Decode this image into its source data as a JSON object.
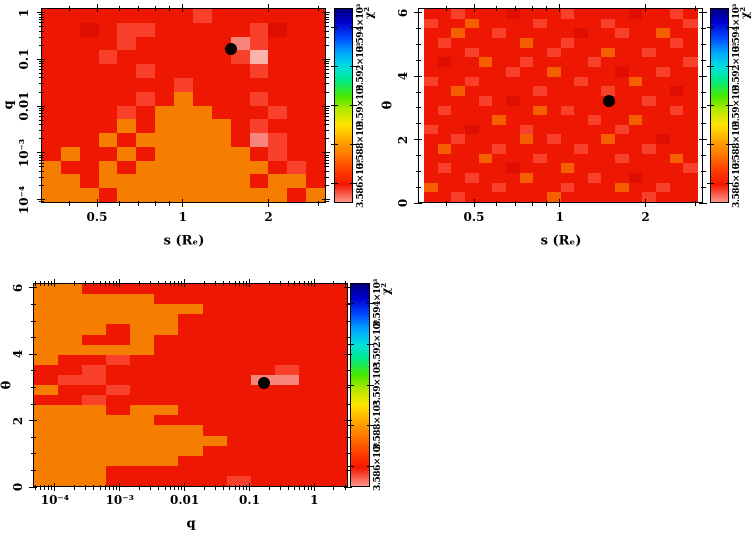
{
  "palette": {
    "r": "#ee1702",
    "s": "#f8402b",
    "d": "#de0e00",
    "o": "#f57e00",
    "O": "#f55f00",
    "p": "#f8857c",
    "P": "#fbb3ab",
    "w": "#ffffff"
  },
  "marker_color": "#000000",
  "colorbar_gradient": [
    [
      "#000080",
      0
    ],
    [
      "#0000d0",
      7
    ],
    [
      "#0048ff",
      15
    ],
    [
      "#00a0ff",
      22
    ],
    [
      "#00e0e0",
      30
    ],
    [
      "#00e888",
      37
    ],
    [
      "#44e800",
      45
    ],
    [
      "#b0e800",
      52
    ],
    [
      "#ffe400",
      60
    ],
    [
      "#ffa800",
      68
    ],
    [
      "#ff7400",
      76
    ],
    [
      "#ff3c00",
      84
    ],
    [
      "#f21600",
      91
    ],
    [
      "#f9604e",
      96
    ],
    [
      "#fd9488",
      100
    ]
  ],
  "chart_data": [
    {
      "type": "heatmap",
      "id": "q-vs-s",
      "xlabel": "s (Rₑ)",
      "ylabel": "q",
      "x_axis": {
        "scale": "log",
        "min": 0.318,
        "max": 3.18,
        "major_ticks": [
          0.5,
          1,
          2
        ],
        "tick_labels": [
          "0.5",
          "1",
          "2"
        ]
      },
      "y_axis": {
        "scale": "log",
        "min": 8.5e-05,
        "max": 1.25,
        "major_ticks": [
          1,
          0.1,
          0.01,
          0.001,
          0.0001
        ],
        "tick_labels": [
          "1",
          "0.1",
          "0.01",
          "10⁻³",
          "10⁻⁴"
        ]
      },
      "best_fit": {
        "s": 1.55,
        "q": 0.15
      },
      "colorbar": {
        "title": "χ²",
        "min": 3585,
        "max": 3595,
        "tick_values": [
          3586,
          3588,
          3590,
          3592,
          3594
        ],
        "tick_labels": [
          "3.586×10³",
          "3.588×10³",
          "3.59×10³",
          "3.592×10³",
          "3.594×10³"
        ]
      },
      "grid": [
        "rrrrrrrrsrrrrrr",
        "rrdrssrrrrrsdrr",
        "rrrrsrrrrrpsrrr",
        "rrrsrrrrrrsPrrr",
        "rrrrrsrrrrrsrrr",
        "rrrrrrrsrrrrrrr",
        "rrrrrsrorrrsrrr",
        "rrrrsrooorrrsrr",
        "rrrroroooorsrrr",
        "rrrorooooorpsrr",
        "rorrorooooorsrr",
        "orrorooooooorsr",
        "oorooooooooroor",
        "oooroooooooooro"
      ]
    },
    {
      "type": "heatmap",
      "id": "theta-vs-s",
      "xlabel": "s (Rₑ)",
      "ylabel": "θ",
      "x_axis": {
        "scale": "log",
        "min": 0.318,
        "max": 3.18,
        "major_ticks": [
          0.5,
          1,
          2
        ],
        "tick_labels": [
          "0.5",
          "1",
          "2"
        ]
      },
      "y_axis": {
        "scale": "linear",
        "min": 0,
        "max": 6.15,
        "major_ticks": [
          0,
          2,
          4,
          6
        ],
        "tick_labels": [
          "0",
          "2",
          "4",
          "6"
        ]
      },
      "best_fit": {
        "s": 1.55,
        "theta": 3.2
      },
      "colorbar": {
        "title": "χ²",
        "min": 3585,
        "max": 3595,
        "tick_values": [
          3586,
          3588,
          3590,
          3592,
          3594
        ],
        "tick_labels": [
          "3.586×10³",
          "3.588×10³",
          "3.59×10³",
          "3.592×10³",
          "3.594×10³"
        ]
      },
      "grid": [
        "rrsrrrdrrrsrrrrdrrsr",
        "srrOrrrrsrrrrsrrrrrs",
        "rrOrrsrrrrrdrrsrrOrr",
        "rsrrrrrOrrsrrrrrrrsr",
        "rrrsrrrrrsrrrOrrsrrr",
        "rdrrOrrsrrrrsrrrrrrs",
        "rrrrrrsrrOrrrrdrrsrr",
        "srrsrrrrrrrsrrrOrrrr",
        "rrOrrrrrsrrrrsrrrrdr",
        "rrrrsrdrrrrrrrrrsrrr",
        "rsrrrrrrOrsrrrrrrrsr",
        "rrrrrOrrrrrrsrrOrrrr",
        "srrdrrrsrrrrrrsrrrrr",
        "rrsrrrrOrsrrrOrrrdrr",
        "rOrrrsrrrrrsrrrrsrrr",
        "rrrrOrrrsrrrrrsrrrOr",
        "rsrrrrdrrrOrrrrrrrrs",
        "rrrsrrrOrrrrsrrdrrrr",
        "OrrrrsrrrrsrrrOrrsrr",
        "rrsrrrrrrOrrrrrrsrrr"
      ]
    },
    {
      "type": "heatmap",
      "id": "theta-vs-q",
      "xlabel": "q",
      "ylabel": "θ",
      "x_axis": {
        "scale": "log",
        "min": 4.6e-05,
        "max": 3.3,
        "major_ticks": [
          0.0001,
          0.001,
          0.01,
          0.1,
          1
        ],
        "tick_labels": [
          "10⁻⁴",
          "10⁻³",
          "0.01",
          "0.1",
          "1"
        ]
      },
      "y_axis": {
        "scale": "linear",
        "min": 0,
        "max": 6.15,
        "major_ticks": [
          0,
          2,
          4,
          6
        ],
        "tick_labels": [
          "0",
          "2",
          "4",
          "6"
        ]
      },
      "best_fit": {
        "q": 0.15,
        "theta": 3.2
      },
      "colorbar": {
        "title": "χ²",
        "min": 3585,
        "max": 3595,
        "tick_values": [
          3586,
          3588,
          3590,
          3592,
          3594
        ],
        "tick_labels": [
          "3.586×10³",
          "3.588×10³",
          "3.59×10³",
          "3.592×10³",
          "3.594×10³"
        ]
      },
      "grid": [
        "oorrrrrrrrrrr",
        "ooooorrrrrrrr",
        "ooooooorrrrrr",
        "oooooorrrrrrr",
        "oooroorrrrrrr",
        "oorrorrrrrrrr",
        "ooooorrrrrrrr",
        "orrsrrrrrrrrr",
        "rrsrrrrrrrsrr",
        "rssrrrrrrpprr",
        "orrsrrrrrrrrr",
        "rrsrrrrrrrrrr",
        "oooroorrrrrrr",
        "ooooorrrrrrrr",
        "ooooooorrrrrr",
        "oooooooorrrrr",
        "ooooooorrrrrr",
        "oooooorrrrrrr",
        "ooorrrrrrrrrr",
        "ooorrrrrsrrrr"
      ]
    }
  ]
}
